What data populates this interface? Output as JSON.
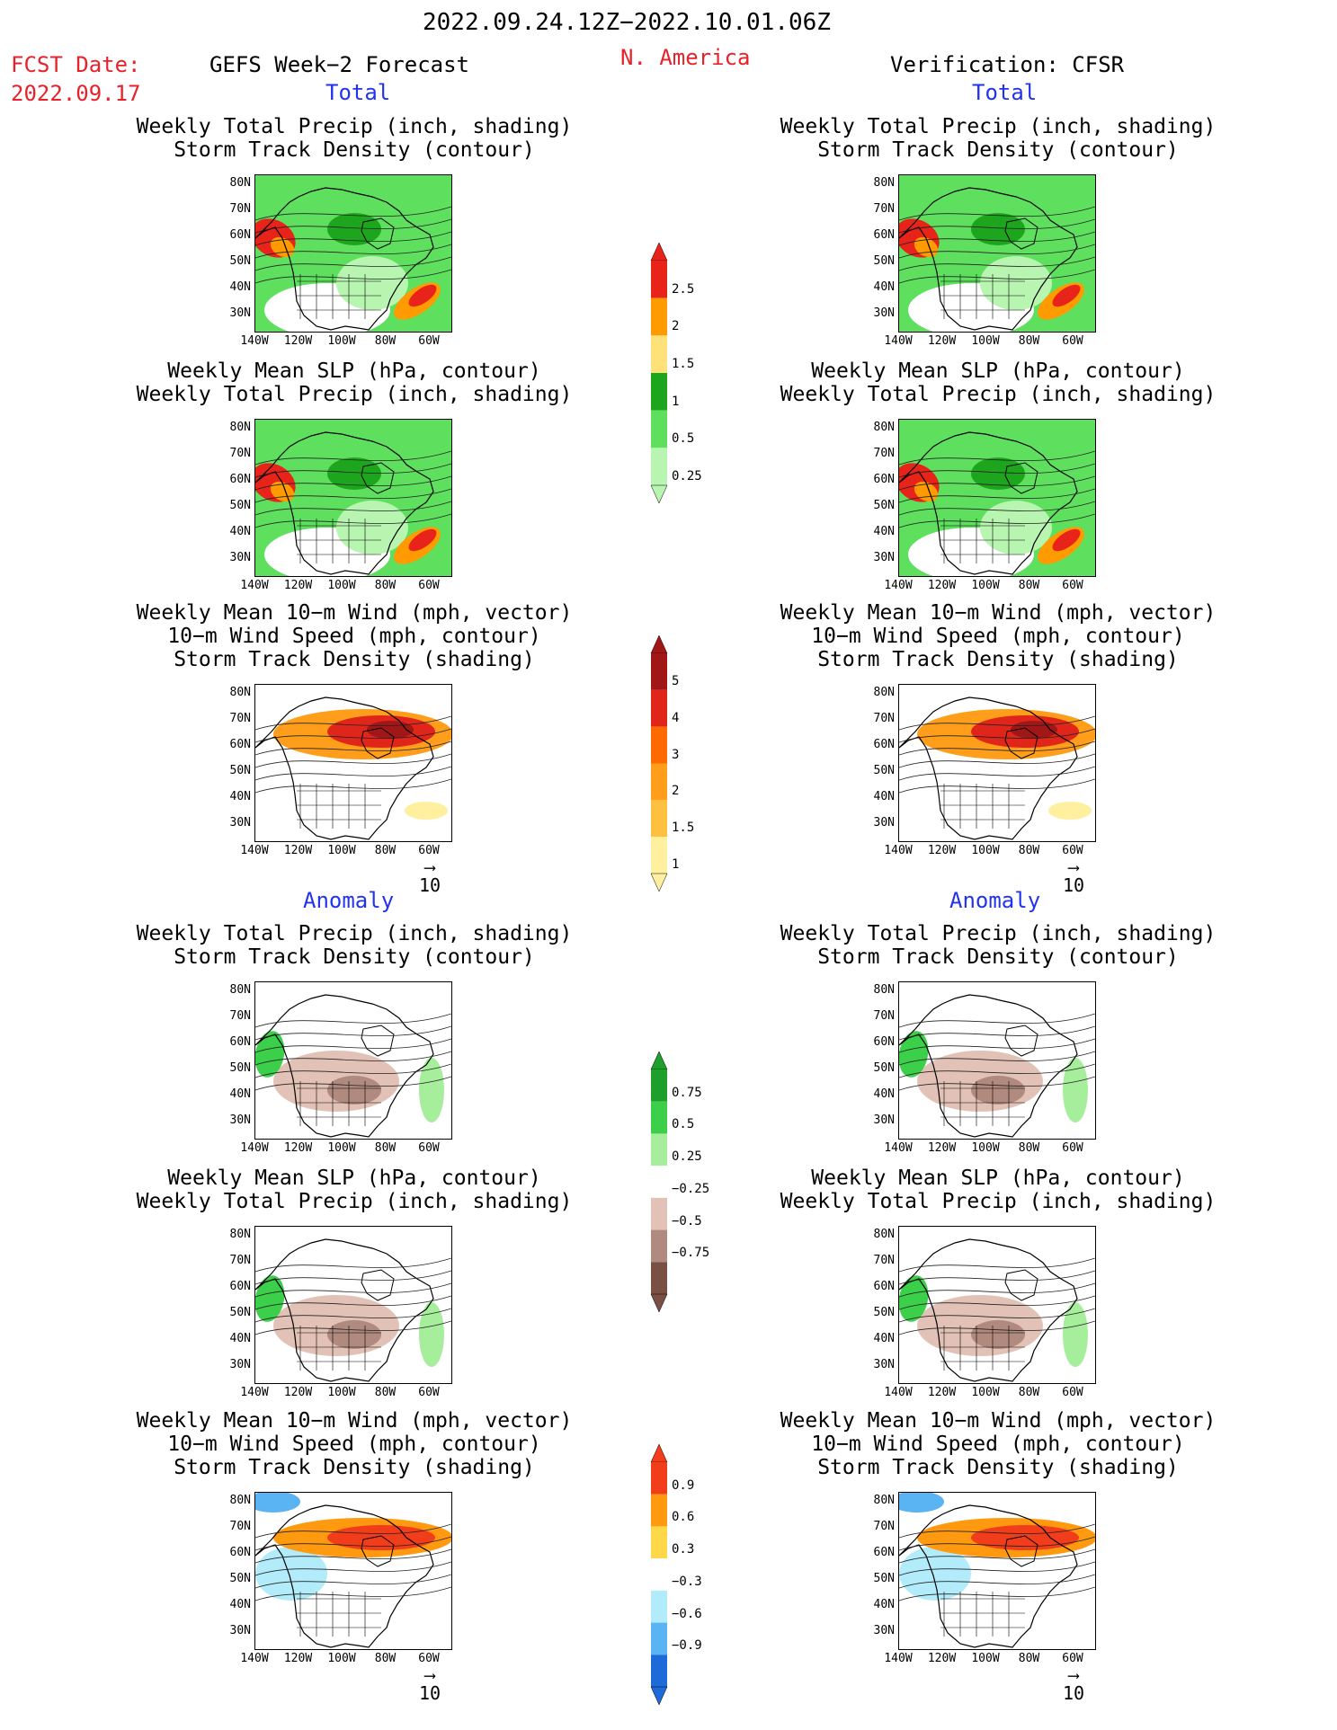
{
  "header": {
    "date_range": "2022.09.24.12Z−2022.10.01.06Z",
    "fcst_label": "FCST Date:",
    "fcst_date": "2022.09.17",
    "model_title": "GEFS Week−2 Forecast",
    "region": "N. America",
    "verification": "Verification: CFSR"
  },
  "sections": {
    "total": "Total",
    "anomaly": "Anomaly"
  },
  "panel_titles": {
    "precip_storm": [
      "Weekly Total Precip (inch, shading)",
      "Storm Track Density (contour)"
    ],
    "slp_precip": [
      "Weekly Mean SLP (hPa, contour)",
      "Weekly Total Precip (inch, shading)"
    ],
    "wind_storm": [
      "Weekly Mean 10−m Wind (mph, vector)",
      "10−m Wind Speed (mph, contour)",
      "Storm Track Density (shading)"
    ]
  },
  "axes": {
    "lat_ticks": [
      "80N",
      "70N",
      "60N",
      "50N",
      "40N",
      "30N"
    ],
    "lon_ticks": [
      "140W",
      "120W",
      "100W",
      "80W",
      "60W"
    ]
  },
  "wind_reference": "10",
  "colorbars": {
    "total_precip": {
      "labels": [
        "2.5",
        "2",
        "1.5",
        "1",
        "0.5",
        "0.25"
      ],
      "colors": [
        "#e8231a",
        "#ff9a00",
        "#ffe17a",
        "#1ea51e",
        "#5ee05e",
        "#b8f5b0"
      ]
    },
    "storm_density": {
      "labels": [
        "5",
        "4",
        "3",
        "2",
        "1.5",
        "1"
      ],
      "colors": [
        "#a11616",
        "#e0261a",
        "#ff6a00",
        "#ff9e1a",
        "#ffc040",
        "#fff0a0"
      ]
    },
    "precip_anom": {
      "labels": [
        "0.75",
        "0.5",
        "0.25",
        "−0.25",
        "−0.5",
        "−0.75"
      ],
      "colors": [
        "#1e9e2a",
        "#3cd04a",
        "#a6ee9c",
        "#ffffff",
        "#e2c2b6",
        "#b08a7e",
        "#7a5044"
      ]
    },
    "storm_anom": {
      "labels": [
        "0.9",
        "0.6",
        "0.3",
        "−0.3",
        "−0.6",
        "−0.9"
      ],
      "colors": [
        "#f13d1a",
        "#ff9a10",
        "#ffd84a",
        "#ffffff",
        "#b2ecfa",
        "#5ab4f4",
        "#1e6ad8"
      ]
    }
  }
}
